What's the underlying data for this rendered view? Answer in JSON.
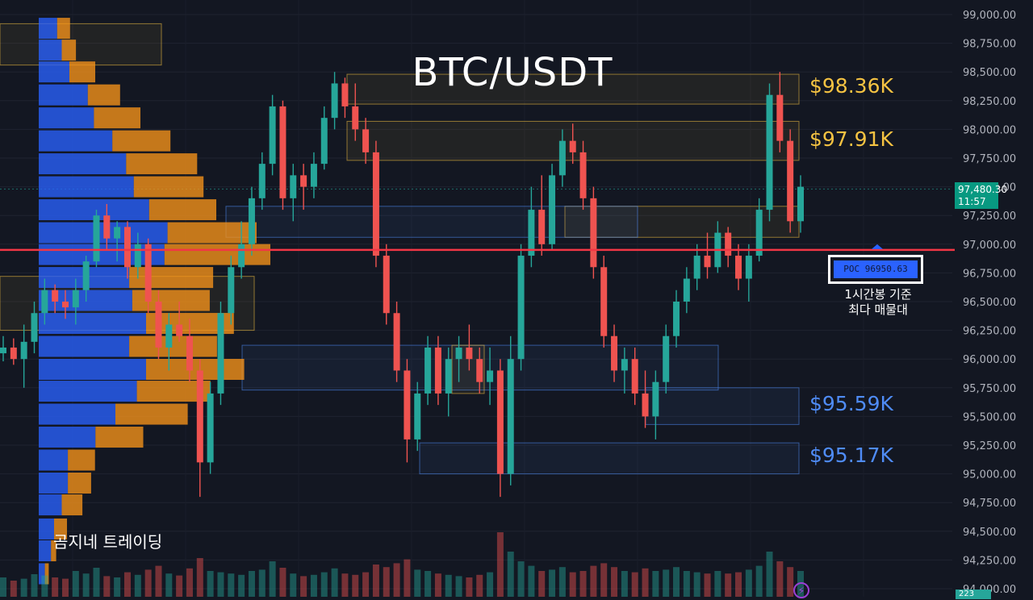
{
  "chart_data": {
    "type": "candlestick",
    "title": "BTC/USDT",
    "ylim": [
      94000,
      99000
    ],
    "y_ticks": [
      "99,000.00",
      "98,750.00",
      "98,500.00",
      "98,250.00",
      "98,000.00",
      "97,750.00",
      "97,500.00",
      "97,250.00",
      "97,000.00",
      "96,750.00",
      "96,500.00",
      "96,250.00",
      "96,000.00",
      "95,750.00",
      "95,500.00",
      "95,250.00",
      "95,000.00",
      "94,750.00",
      "94,500.00",
      "94,250.00",
      "94,000.00"
    ],
    "current_price": "97,480.30",
    "countdown": "11:57",
    "current_price_value": 97480.3,
    "poc_label": "POC  96950.63",
    "poc_value": 96950.63,
    "poc_note_line1": "1시간봉 기준",
    "poc_note_line2": "최다 매물대",
    "levels": [
      {
        "label": "$98.36K",
        "price": 98360,
        "kind": "resistance"
      },
      {
        "label": "$97.91K",
        "price": 97910,
        "kind": "resistance"
      },
      {
        "label": "$95.59K",
        "price": 95590,
        "kind": "support"
      },
      {
        "label": "$95.17K",
        "price": 95170,
        "kind": "support"
      }
    ],
    "zones": [
      {
        "lo": 98560,
        "hi": 98920,
        "kind": "resistance"
      },
      {
        "lo": 98220,
        "hi": 98480,
        "kind": "resistance"
      },
      {
        "lo": 97730,
        "hi": 98070,
        "kind": "resistance"
      },
      {
        "lo": 97060,
        "hi": 97330,
        "kind": "resistance"
      },
      {
        "lo": 97060,
        "hi": 97330,
        "kind": "support"
      },
      {
        "lo": 96250,
        "hi": 96720,
        "kind": "resistance"
      },
      {
        "lo": 95730,
        "hi": 96120,
        "kind": "support"
      },
      {
        "lo": 95700,
        "hi": 96120,
        "kind": "resistance"
      },
      {
        "lo": 95430,
        "hi": 95750,
        "kind": "support"
      },
      {
        "lo": 95000,
        "hi": 95270,
        "kind": "support"
      }
    ],
    "volume_profile": [
      {
        "price": 98880,
        "up": 0.12,
        "down": 0.1
      },
      {
        "price": 98690,
        "up": 0.15,
        "down": 0.11
      },
      {
        "price": 98500,
        "up": 0.2,
        "down": 0.2
      },
      {
        "price": 98300,
        "up": 0.32,
        "down": 0.25
      },
      {
        "price": 98100,
        "up": 0.36,
        "down": 0.36
      },
      {
        "price": 97900,
        "up": 0.48,
        "down": 0.45
      },
      {
        "price": 97700,
        "up": 0.57,
        "down": 0.55
      },
      {
        "price": 97500,
        "up": 0.62,
        "down": 0.54
      },
      {
        "price": 97300,
        "up": 0.72,
        "down": 0.52
      },
      {
        "price": 97100,
        "up": 0.84,
        "down": 0.69
      },
      {
        "price": 96910,
        "up": 0.82,
        "down": 0.82
      },
      {
        "price": 96710,
        "up": 0.59,
        "down": 0.65
      },
      {
        "price": 96510,
        "up": 0.61,
        "down": 0.6
      },
      {
        "price": 96310,
        "up": 0.7,
        "down": 0.68
      },
      {
        "price": 96110,
        "up": 0.59,
        "down": 0.68
      },
      {
        "price": 95910,
        "up": 0.7,
        "down": 0.76
      },
      {
        "price": 95720,
        "up": 0.64,
        "down": 0.57
      },
      {
        "price": 95520,
        "up": 0.5,
        "down": 0.56
      },
      {
        "price": 95320,
        "up": 0.37,
        "down": 0.37
      },
      {
        "price": 95120,
        "up": 0.19,
        "down": 0.21
      },
      {
        "price": 94920,
        "up": 0.19,
        "down": 0.18
      },
      {
        "price": 94730,
        "up": 0.15,
        "down": 0.16
      },
      {
        "price": 94520,
        "up": 0.1,
        "down": 0.1
      },
      {
        "price": 94330,
        "up": 0.08,
        "down": 0.04
      },
      {
        "price": 94130,
        "up": 0.04,
        "down": 0.03
      }
    ],
    "candles": [
      [
        96050,
        96200,
        95980,
        96100
      ],
      [
        96100,
        96180,
        95950,
        96000
      ],
      [
        96000,
        96300,
        95750,
        96150
      ],
      [
        96150,
        96500,
        96050,
        96400
      ],
      [
        96400,
        96700,
        96300,
        96600
      ],
      [
        96600,
        96650,
        96400,
        96500
      ],
      [
        96500,
        96600,
        96350,
        96450
      ],
      [
        96450,
        96700,
        96300,
        96600
      ],
      [
        96600,
        96900,
        96500,
        96850
      ],
      [
        96850,
        97300,
        96800,
        97250
      ],
      [
        97250,
        97350,
        96950,
        97050
      ],
      [
        97050,
        97200,
        96850,
        97150
      ],
      [
        97150,
        97200,
        96700,
        96800
      ],
      [
        96800,
        97100,
        96700,
        97000
      ],
      [
        97000,
        97050,
        96400,
        96500
      ],
      [
        96500,
        96600,
        96000,
        96100
      ],
      [
        96100,
        96400,
        95900,
        96300
      ],
      [
        96300,
        96500,
        96150,
        96200
      ],
      [
        96200,
        96350,
        95800,
        95900
      ],
      [
        95900,
        96000,
        94800,
        95100
      ],
      [
        95100,
        95800,
        95000,
        95700
      ],
      [
        95700,
        96500,
        95600,
        96400
      ],
      [
        96400,
        96900,
        96300,
        96800
      ],
      [
        96800,
        97200,
        96700,
        97000
      ],
      [
        97000,
        97500,
        96900,
        97400
      ],
      [
        97400,
        97800,
        97300,
        97700
      ],
      [
        97700,
        98300,
        97600,
        98200
      ],
      [
        98200,
        98250,
        97300,
        97400
      ],
      [
        97400,
        97700,
        97200,
        97600
      ],
      [
        97600,
        97700,
        97300,
        97500
      ],
      [
        97500,
        97800,
        97400,
        97700
      ],
      [
        97700,
        98200,
        97650,
        98100
      ],
      [
        98100,
        98500,
        98000,
        98400
      ],
      [
        98400,
        98450,
        98100,
        98200
      ],
      [
        98200,
        98400,
        97900,
        98000
      ],
      [
        98000,
        98100,
        97700,
        97800
      ],
      [
        97800,
        97900,
        96800,
        96900
      ],
      [
        96900,
        97000,
        96300,
        96400
      ],
      [
        96400,
        96500,
        95800,
        95900
      ],
      [
        95900,
        96000,
        95100,
        95300
      ],
      [
        95300,
        95800,
        95200,
        95700
      ],
      [
        95700,
        96200,
        95600,
        96100
      ],
      [
        96100,
        96200,
        95600,
        95700
      ],
      [
        95700,
        96100,
        95500,
        96000
      ],
      [
        96000,
        96200,
        95800,
        96100
      ],
      [
        96100,
        96300,
        95900,
        96000
      ],
      [
        96000,
        96100,
        95700,
        95800
      ],
      [
        95800,
        96100,
        95600,
        95900
      ],
      [
        95900,
        96000,
        94800,
        95000
      ],
      [
        95000,
        96200,
        94900,
        96000
      ],
      [
        96000,
        97000,
        95900,
        96900
      ],
      [
        96900,
        97500,
        96800,
        97300
      ],
      [
        97300,
        97600,
        96900,
        97000
      ],
      [
        97000,
        97700,
        96950,
        97600
      ],
      [
        97600,
        98000,
        97500,
        97900
      ],
      [
        97900,
        98050,
        97700,
        97800
      ],
      [
        97800,
        97900,
        97300,
        97400
      ],
      [
        97400,
        97500,
        96700,
        96800
      ],
      [
        96800,
        96900,
        96100,
        96200
      ],
      [
        96200,
        96300,
        95800,
        95900
      ],
      [
        95900,
        96100,
        95700,
        96000
      ],
      [
        96000,
        96100,
        95600,
        95700
      ],
      [
        95700,
        95900,
        95400,
        95500
      ],
      [
        95500,
        95900,
        95300,
        95800
      ],
      [
        95800,
        96300,
        95700,
        96200
      ],
      [
        96200,
        96600,
        96100,
        96500
      ],
      [
        96500,
        96800,
        96400,
        96700
      ],
      [
        96700,
        97000,
        96600,
        96900
      ],
      [
        96900,
        97100,
        96700,
        96800
      ],
      [
        96800,
        97200,
        96750,
        97100
      ],
      [
        97100,
        97150,
        96800,
        96900
      ],
      [
        96900,
        97000,
        96600,
        96700
      ],
      [
        96700,
        97000,
        96500,
        96900
      ],
      [
        96900,
        97400,
        96850,
        97300
      ],
      [
        97300,
        98400,
        97200,
        98300
      ],
      [
        98300,
        98500,
        97800,
        97900
      ],
      [
        97900,
        98000,
        97100,
        97200
      ],
      [
        97200,
        97600,
        97100,
        97500
      ]
    ],
    "volumes": [
      0.3,
      0.25,
      0.28,
      0.35,
      0.33,
      0.3,
      0.28,
      0.4,
      0.36,
      0.45,
      0.32,
      0.3,
      0.38,
      0.34,
      0.42,
      0.48,
      0.36,
      0.33,
      0.44,
      0.6,
      0.4,
      0.38,
      0.36,
      0.34,
      0.4,
      0.42,
      0.55,
      0.45,
      0.36,
      0.32,
      0.34,
      0.38,
      0.44,
      0.36,
      0.34,
      0.38,
      0.5,
      0.46,
      0.52,
      0.58,
      0.42,
      0.4,
      0.36,
      0.34,
      0.32,
      0.3,
      0.34,
      0.38,
      1.0,
      0.7,
      0.55,
      0.48,
      0.4,
      0.42,
      0.46,
      0.38,
      0.4,
      0.48,
      0.52,
      0.46,
      0.4,
      0.38,
      0.44,
      0.4,
      0.42,
      0.46,
      0.4,
      0.38,
      0.36,
      0.4,
      0.36,
      0.38,
      0.42,
      0.48,
      0.7,
      0.55,
      0.46,
      0.4
    ]
  },
  "brand": "곰지네 트레이딩",
  "volume_value": "223",
  "colors": {
    "up": "#26a69a",
    "down": "#ef5350",
    "poc_line": "#f23645",
    "profile_up": "#2962ff",
    "profile_down": "#f7931a",
    "resistance": "#f5c342",
    "support": "#4f8cf7",
    "bg": "#131722"
  }
}
